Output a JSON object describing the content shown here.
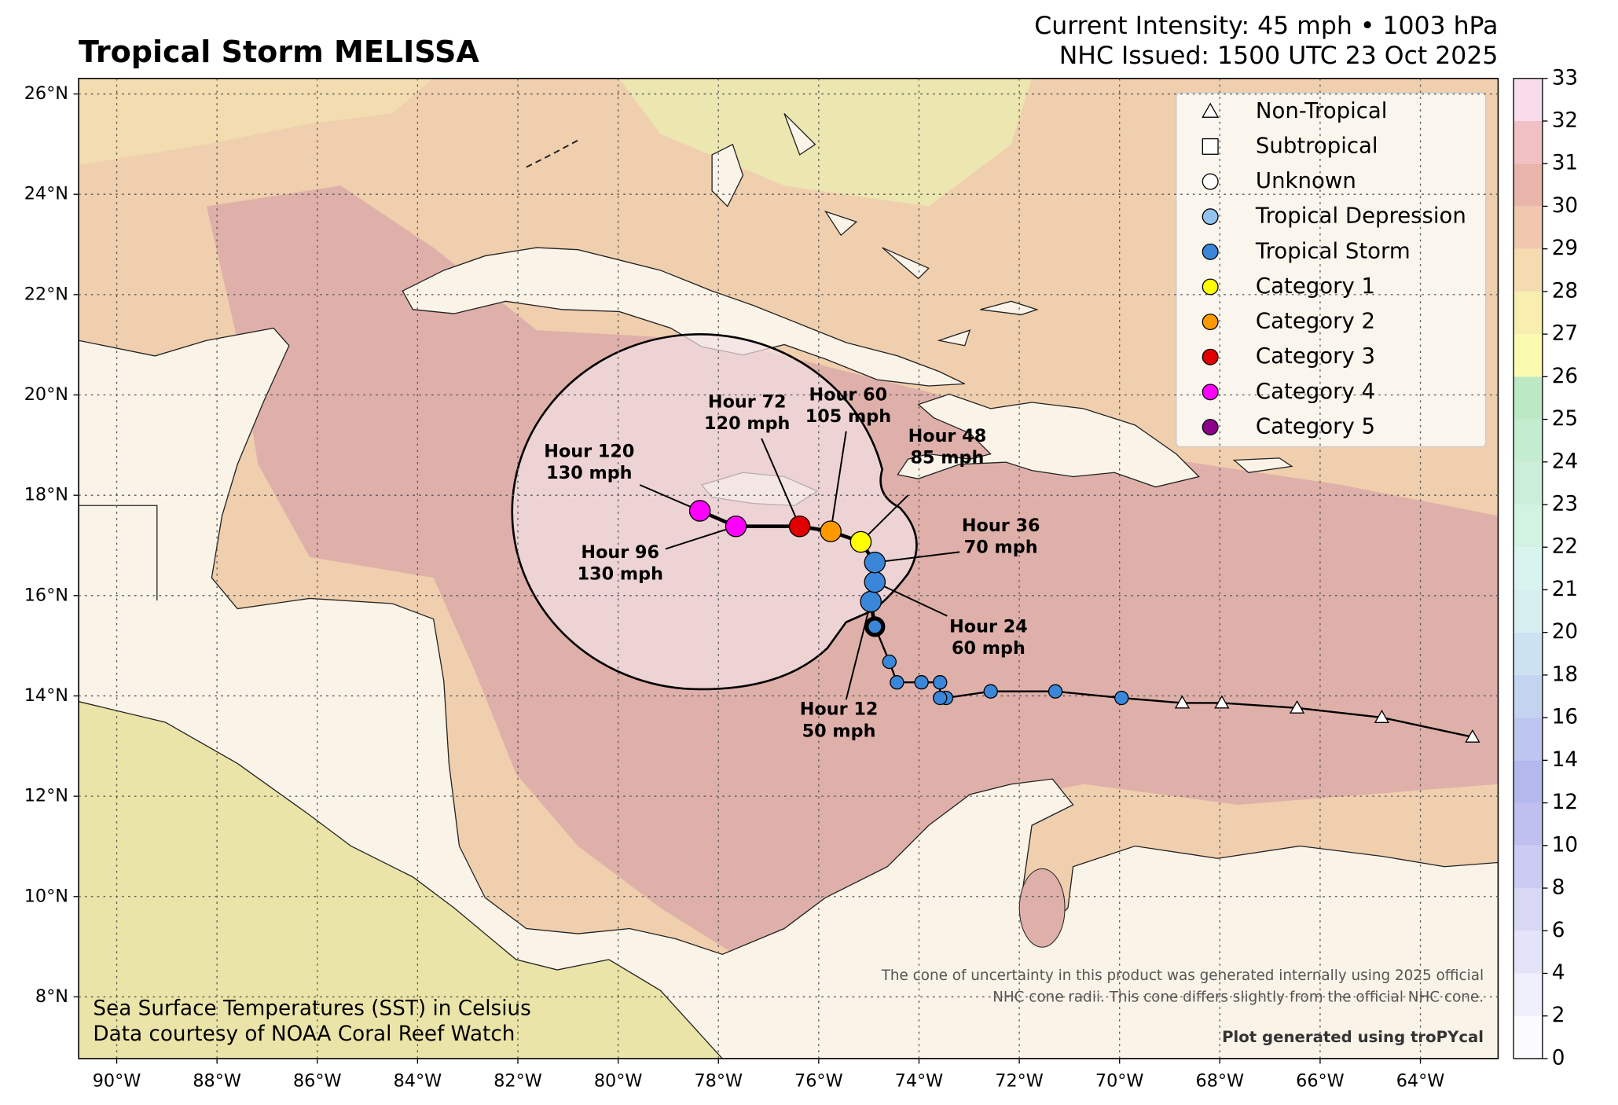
{
  "chart_data": {
    "type": "map",
    "title": "Tropical Storm MELISSA",
    "subtitle": [
      "Current Intensity: 45 mph • 1003 hPa",
      "NHC Issued: 1500 UTC 23 Oct 2025"
    ],
    "xlim": [
      -90.76,
      -62.45
    ],
    "ylim": [
      6.77,
      26.31
    ],
    "xticks": [
      {
        "value": -90,
        "label": "90°W"
      },
      {
        "value": -88,
        "label": "88°W"
      },
      {
        "value": -86,
        "label": "86°W"
      },
      {
        "value": -84,
        "label": "84°W"
      },
      {
        "value": -82,
        "label": "82°W"
      },
      {
        "value": -80,
        "label": "80°W"
      },
      {
        "value": -78,
        "label": "78°W"
      },
      {
        "value": -76,
        "label": "76°W"
      },
      {
        "value": -74,
        "label": "74°W"
      },
      {
        "value": -72,
        "label": "72°W"
      },
      {
        "value": -70,
        "label": "70°W"
      },
      {
        "value": -68,
        "label": "68°W"
      },
      {
        "value": -66,
        "label": "66°W"
      },
      {
        "value": -64,
        "label": "64°W"
      }
    ],
    "yticks": [
      {
        "value": 8,
        "label": "8°N"
      },
      {
        "value": 10,
        "label": "10°N"
      },
      {
        "value": 12,
        "label": "12°N"
      },
      {
        "value": 14,
        "label": "14°N"
      },
      {
        "value": 16,
        "label": "16°N"
      },
      {
        "value": 18,
        "label": "18°N"
      },
      {
        "value": 20,
        "label": "20°N"
      },
      {
        "value": 22,
        "label": "22°N"
      },
      {
        "value": 24,
        "label": "24°N"
      },
      {
        "value": 26,
        "label": "26°N"
      }
    ],
    "grid": true,
    "legend": [
      {
        "name": "Non-Tropical",
        "marker": "triangle",
        "color": "#ffffff"
      },
      {
        "name": "Subtropical",
        "marker": "square",
        "color": "#ffffff"
      },
      {
        "name": "Unknown",
        "marker": "circle",
        "color": "#ffffff"
      },
      {
        "name": "Tropical Depression",
        "marker": "circle",
        "color": "#92c3ee"
      },
      {
        "name": "Tropical Storm",
        "marker": "circle",
        "color": "#3a86d8"
      },
      {
        "name": "Category 1",
        "marker": "circle",
        "color": "#ffff00"
      },
      {
        "name": "Category 2",
        "marker": "circle",
        "color": "#ff9900"
      },
      {
        "name": "Category 3",
        "marker": "circle",
        "color": "#e00000"
      },
      {
        "name": "Category 4",
        "marker": "circle",
        "color": "#ff00ff"
      },
      {
        "name": "Category 5",
        "marker": "circle",
        "color": "#8b008b"
      }
    ],
    "track": {
      "lon": [
        -62.96,
        -64.77,
        -66.46,
        -67.96,
        -68.75,
        -69.96,
        -71.28,
        -72.57,
        -73.46,
        -73.58,
        -73.58,
        -73.95,
        -74.44,
        -74.59,
        -74.88
      ],
      "lat": [
        13.18,
        13.57,
        13.76,
        13.86,
        13.86,
        13.96,
        14.09,
        14.09,
        13.96,
        13.96,
        14.27,
        14.27,
        14.27,
        14.68,
        15.38
      ],
      "category": [
        "Non-Tropical",
        "Non-Tropical",
        "Non-Tropical",
        "Non-Tropical",
        "Non-Tropical",
        "Tropical Storm",
        "Tropical Storm",
        "Tropical Storm",
        "Tropical Storm",
        "Tropical Storm",
        "Tropical Storm",
        "Tropical Storm",
        "Tropical Storm",
        "Tropical Storm",
        "Tropical Storm"
      ]
    },
    "forecast": {
      "lon": [
        -74.96,
        -74.88,
        -74.88,
        -75.16,
        -75.76,
        -76.38,
        -77.65,
        -78.37
      ],
      "lat": [
        15.88,
        16.27,
        16.66,
        17.07,
        17.28,
        17.38,
        17.38,
        17.69
      ],
      "category": [
        "Tropical Storm",
        "Tropical Storm",
        "Tropical Storm",
        "Category 1",
        "Category 2",
        "Category 3",
        "Category 4",
        "Category 4"
      ],
      "hour_labels": [
        "Hour 12",
        "Hour 24",
        "Hour 36",
        "Hour 48",
        "Hour 60",
        "Hour 72",
        "Hour 96",
        "Hour 120"
      ],
      "wind_labels": [
        "50 mph",
        "60 mph",
        "70 mph",
        "85 mph",
        "105 mph",
        "120 mph",
        "130 mph",
        "130 mph"
      ]
    },
    "colorbar": {
      "levels": [
        0,
        2,
        4,
        6,
        8,
        10,
        12,
        14,
        16,
        18,
        20,
        21,
        22,
        23,
        24,
        25,
        26,
        27,
        28,
        29,
        30,
        31,
        32,
        33
      ],
      "colors": [
        "#fbfbff",
        "#f0f0fc",
        "#e4e4f8",
        "#d8d8f4",
        "#ccccf2",
        "#bfc0ef",
        "#b4b8ec",
        "#bcc6ee",
        "#c4d4f0",
        "#cde2f0",
        "#d6eef0",
        "#d8f4ee",
        "#d2f2e2",
        "#cbeed8",
        "#c4ecd0",
        "#bde8c4",
        "#fbfbb0",
        "#f7eeb0",
        "#f4dcb0",
        "#f0c8b0",
        "#e9b4aa",
        "#f0c0c4",
        "#f8dcec"
      ]
    },
    "source_notes": [
      "Sea Surface Temperatures (SST) in Celsius",
      "Data courtesy of NOAA Coral Reef Watch"
    ],
    "cone_note": [
      "The cone of uncertainty in this product was generated internally using 2025 official",
      "NHC cone radii. This cone differs slightly from the official NHC cone."
    ],
    "credit": "Plot generated using troPYcal"
  }
}
